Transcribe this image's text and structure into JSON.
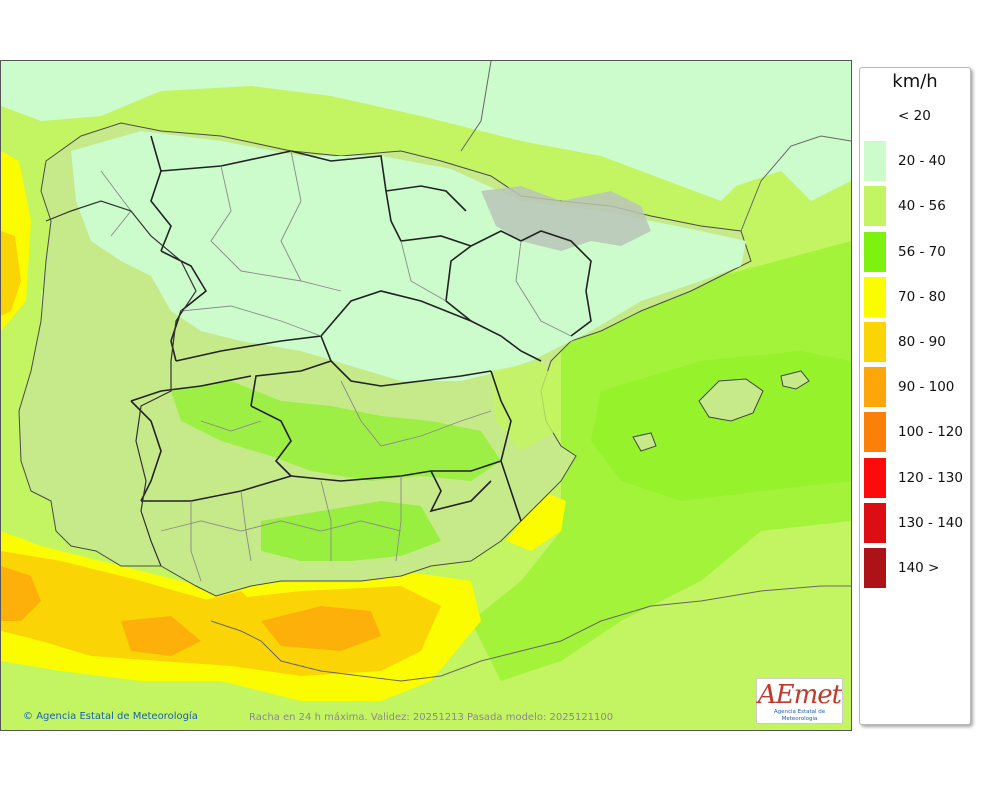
{
  "legend": {
    "unit": "km/h",
    "classes": [
      {
        "label": "< 20",
        "color": "#ffffff"
      },
      {
        "label": "20 - 40",
        "color": "#ccfccc"
      },
      {
        "label": "40 - 56",
        "color": "#c3f562"
      },
      {
        "label": "56 - 70",
        "color": "#7cf20e"
      },
      {
        "label": "70 - 80",
        "color": "#fcfc00"
      },
      {
        "label": "80 - 90",
        "color": "#fbd406"
      },
      {
        "label": "90 - 100",
        "color": "#fca60a"
      },
      {
        "label": "100 - 120",
        "color": "#fb800a"
      },
      {
        "label": "120 - 130",
        "color": "#fb0b0b"
      },
      {
        "label": "130 - 140",
        "color": "#dd0d14"
      },
      {
        "label": "140 >",
        "color": "#ad1219"
      }
    ]
  },
  "footer": {
    "agency": "Agencia Estatal de Meteorología",
    "caption": "Racha en 24 h máxima. Validez: 20251213 Pasada modelo: 2025121100"
  },
  "logo": {
    "brand": "AEmet",
    "subtitle": "Agencia Estatal de Meteorología"
  },
  "map": {
    "region": "Iberian Peninsula and Balearic Islands",
    "variable": "maximum 24 h wind gust",
    "relief": "hill-shaded terrain",
    "colors": {
      "sea": "#c3f562",
      "land": "#c6ea8a",
      "border": "#222222",
      "province": "#8a8a8a"
    }
  }
}
